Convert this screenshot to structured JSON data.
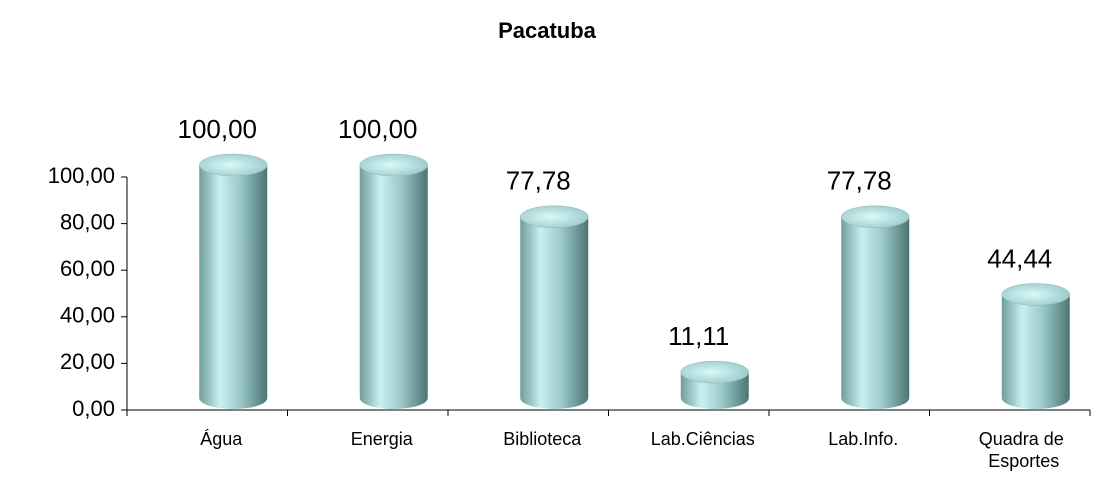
{
  "chart_data": {
    "type": "bar",
    "title": "Pacatuba",
    "categories": [
      "Água",
      "Energia",
      "Biblioteca",
      "Lab.Ciências",
      "Lab.Info.",
      "Quadra de Esportes"
    ],
    "values": [
      100,
      100,
      77.78,
      11.11,
      77.78,
      44.44
    ],
    "value_labels": [
      "100,00",
      "100,00",
      "77,78",
      "11,11",
      "77,78",
      "44,44"
    ],
    "color": "#a8dcdc",
    "ylim": [
      0,
      100
    ],
    "yticks": [
      {
        "value": 0,
        "label": "0,00"
      },
      {
        "value": 20,
        "label": "20,00"
      },
      {
        "value": 40,
        "label": "40,00"
      },
      {
        "value": 60,
        "label": "60,00"
      },
      {
        "value": 80,
        "label": "80,00"
      },
      {
        "value": 100,
        "label": "100,00"
      }
    ],
    "grid": false
  }
}
